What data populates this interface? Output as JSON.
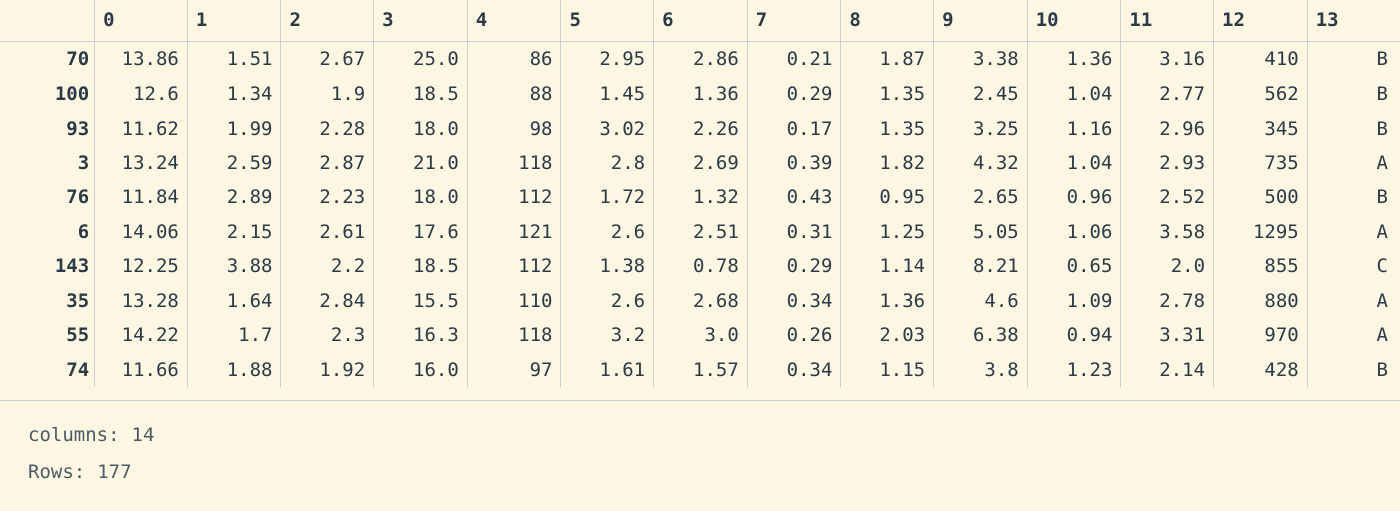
{
  "table": {
    "columns": [
      "0",
      "1",
      "2",
      "3",
      "4",
      "5",
      "6",
      "7",
      "8",
      "9",
      "10",
      "11",
      "12",
      "13"
    ],
    "rows": [
      {
        "index": "70",
        "cells": [
          "13.86",
          "1.51",
          "2.67",
          "25.0",
          "86",
          "2.95",
          "2.86",
          "0.21",
          "1.87",
          "3.38",
          "1.36",
          "3.16",
          "410",
          "B"
        ]
      },
      {
        "index": "100",
        "cells": [
          "12.6",
          "1.34",
          "1.9",
          "18.5",
          "88",
          "1.45",
          "1.36",
          "0.29",
          "1.35",
          "2.45",
          "1.04",
          "2.77",
          "562",
          "B"
        ]
      },
      {
        "index": "93",
        "cells": [
          "11.62",
          "1.99",
          "2.28",
          "18.0",
          "98",
          "3.02",
          "2.26",
          "0.17",
          "1.35",
          "3.25",
          "1.16",
          "2.96",
          "345",
          "B"
        ]
      },
      {
        "index": "3",
        "cells": [
          "13.24",
          "2.59",
          "2.87",
          "21.0",
          "118",
          "2.8",
          "2.69",
          "0.39",
          "1.82",
          "4.32",
          "1.04",
          "2.93",
          "735",
          "A"
        ]
      },
      {
        "index": "76",
        "cells": [
          "11.84",
          "2.89",
          "2.23",
          "18.0",
          "112",
          "1.72",
          "1.32",
          "0.43",
          "0.95",
          "2.65",
          "0.96",
          "2.52",
          "500",
          "B"
        ]
      },
      {
        "index": "6",
        "cells": [
          "14.06",
          "2.15",
          "2.61",
          "17.6",
          "121",
          "2.6",
          "2.51",
          "0.31",
          "1.25",
          "5.05",
          "1.06",
          "3.58",
          "1295",
          "A"
        ]
      },
      {
        "index": "143",
        "cells": [
          "12.25",
          "3.88",
          "2.2",
          "18.5",
          "112",
          "1.38",
          "0.78",
          "0.29",
          "1.14",
          "8.21",
          "0.65",
          "2.0",
          "855",
          "C"
        ]
      },
      {
        "index": "35",
        "cells": [
          "13.28",
          "1.64",
          "2.84",
          "15.5",
          "110",
          "2.6",
          "2.68",
          "0.34",
          "1.36",
          "4.6",
          "1.09",
          "2.78",
          "880",
          "A"
        ]
      },
      {
        "index": "55",
        "cells": [
          "14.22",
          "1.7",
          "2.3",
          "16.3",
          "118",
          "3.2",
          "3.0",
          "0.26",
          "2.03",
          "6.38",
          "0.94",
          "3.31",
          "970",
          "A"
        ]
      },
      {
        "index": "74",
        "cells": [
          "11.66",
          "1.88",
          "1.92",
          "16.0",
          "97",
          "1.61",
          "1.57",
          "0.34",
          "1.15",
          "3.8",
          "1.23",
          "2.14",
          "428",
          "B"
        ]
      }
    ]
  },
  "footer": {
    "columns_label": "columns:",
    "columns_value": "14",
    "rows_label": "Rows:",
    "rows_value": "177"
  },
  "colors": {
    "background": "#fdf6e3",
    "text": "#2b3a47",
    "grid": "#c9cfcf"
  }
}
